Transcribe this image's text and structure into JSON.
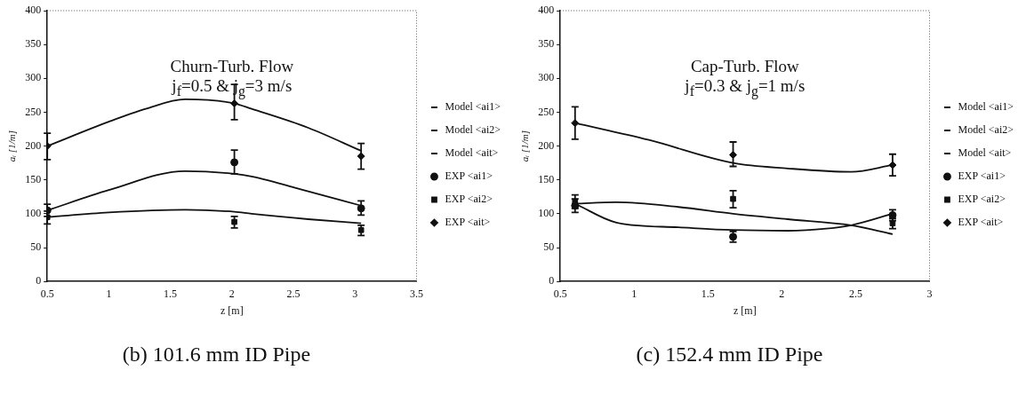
{
  "chart_data": [
    {
      "type": "scatter",
      "title": "(b) 101.6 mm ID Pipe",
      "xlabel": "z [m]",
      "ylabel": "aᵢ [1/m]",
      "annotations": [
        "Churn-Turb. Flow",
        "j$_{f}$=0.5 & j$_{g}$=3 m/s"
      ],
      "xlim": [
        0.5,
        3.5
      ],
      "xticks": [
        0.5,
        1,
        1.5,
        2,
        2.5,
        3,
        3.5
      ],
      "ylim": [
        0,
        400
      ],
      "yticks": [
        0,
        50,
        100,
        150,
        200,
        250,
        300,
        350,
        400
      ],
      "grid": false,
      "legend": "right",
      "series": [
        {
          "name": "Model <ai1>",
          "type": "line",
          "marker": "none",
          "color": "#111111",
          "x": [
            0.5,
            1.0,
            1.62,
            2.02,
            2.16,
            2.62,
            3.05
          ],
          "values": [
            105,
            135,
            163,
            159,
            155,
            133,
            112
          ]
        },
        {
          "name": "Model <ai2>",
          "type": "line",
          "marker": "none",
          "color": "#111111",
          "x": [
            0.5,
            1.0,
            1.62,
            2.02,
            2.16,
            2.62,
            3.05
          ],
          "values": [
            95,
            102,
            106,
            103,
            100,
            92,
            86
          ]
        },
        {
          "name": "Model <ait>",
          "type": "line",
          "marker": "none",
          "color": "#111111",
          "x": [
            0.5,
            1.0,
            1.3,
            1.62,
            2.02,
            2.16,
            2.62,
            3.05
          ],
          "values": [
            200,
            236,
            255,
            269,
            263,
            255,
            227,
            193
          ]
        },
        {
          "name": "EXP <ai1>",
          "type": "scatter",
          "marker": "circle",
          "color": "#111111",
          "x": [
            0.5,
            2.02,
            3.05
          ],
          "values": [
            105,
            176,
            108
          ],
          "errors": [
            [
              96,
              114
            ],
            [
              159,
              194
            ],
            [
              98,
              119
            ]
          ]
        },
        {
          "name": "EXP <ai2>",
          "type": "scatter",
          "marker": "square",
          "color": "#111111",
          "x": [
            0.5,
            2.02,
            3.05
          ],
          "values": [
            95,
            88,
            76
          ],
          "errors": [
            [
              85,
              104
            ],
            [
              79,
              96
            ],
            [
              68,
              83
            ]
          ]
        },
        {
          "name": "EXP <ait>",
          "type": "scatter",
          "marker": "diamond",
          "color": "#111111",
          "x": [
            0.5,
            2.02,
            3.05
          ],
          "values": [
            200,
            263,
            185
          ],
          "errors": [
            [
              180,
              219
            ],
            [
              239,
              291
            ],
            [
              166,
              204
            ]
          ]
        }
      ]
    },
    {
      "type": "scatter",
      "title": "(c) 152.4 mm ID Pipe",
      "xlabel": "z [m]",
      "ylabel": "aᵢ [1/m]",
      "annotations": [
        "Cap-Turb. Flow",
        "j$_{f}$=0.3 & j$_{g}$=1 m/s"
      ],
      "xlim": [
        0.5,
        3
      ],
      "xticks": [
        0.5,
        1,
        1.5,
        2,
        2.5,
        3
      ],
      "ylim": [
        0,
        400
      ],
      "yticks": [
        0,
        50,
        100,
        150,
        200,
        250,
        300,
        350,
        400
      ],
      "grid": false,
      "legend": "right",
      "series": [
        {
          "name": "Model <ai1>",
          "type": "line",
          "marker": "none",
          "color": "#111111",
          "x": [
            0.6,
            0.88,
            1.3,
            1.67,
            2.04,
            2.3,
            2.47,
            2.75
          ],
          "values": [
            115,
            87,
            80,
            76,
            75,
            78,
            83,
            100
          ]
        },
        {
          "name": "Model <ai2>",
          "type": "line",
          "marker": "none",
          "color": "#111111",
          "x": [
            0.6,
            0.88,
            1.3,
            1.67,
            2.04,
            2.47,
            2.75
          ],
          "values": [
            115,
            117,
            110,
            100,
            92,
            83,
            70
          ]
        },
        {
          "name": "Model <ait>",
          "type": "line",
          "marker": "none",
          "color": "#111111",
          "x": [
            0.6,
            1.1,
            1.67,
            2.04,
            2.47,
            2.75
          ],
          "values": [
            234,
            209,
            175,
            167,
            162,
            172
          ]
        },
        {
          "name": "EXP <ai1>",
          "type": "scatter",
          "marker": "circle",
          "color": "#111111",
          "x": [
            0.6,
            1.67,
            2.75
          ],
          "values": [
            112,
            66,
            98
          ],
          "errors": [
            [
              102,
              122
            ],
            [
              58,
              74
            ],
            [
              90,
              106
            ]
          ]
        },
        {
          "name": "EXP <ai2>",
          "type": "scatter",
          "marker": "square",
          "color": "#111111",
          "x": [
            0.6,
            1.67,
            2.75
          ],
          "values": [
            118,
            122,
            86
          ],
          "errors": [
            [
              108,
              128
            ],
            [
              109,
              134
            ],
            [
              78,
              93
            ]
          ]
        },
        {
          "name": "EXP <ait>",
          "type": "scatter",
          "marker": "diamond",
          "color": "#111111",
          "x": [
            0.6,
            1.67,
            2.75
          ],
          "values": [
            234,
            187,
            172
          ],
          "errors": [
            [
              210,
              258
            ],
            [
              170,
              206
            ],
            [
              156,
              188
            ]
          ]
        }
      ]
    }
  ]
}
